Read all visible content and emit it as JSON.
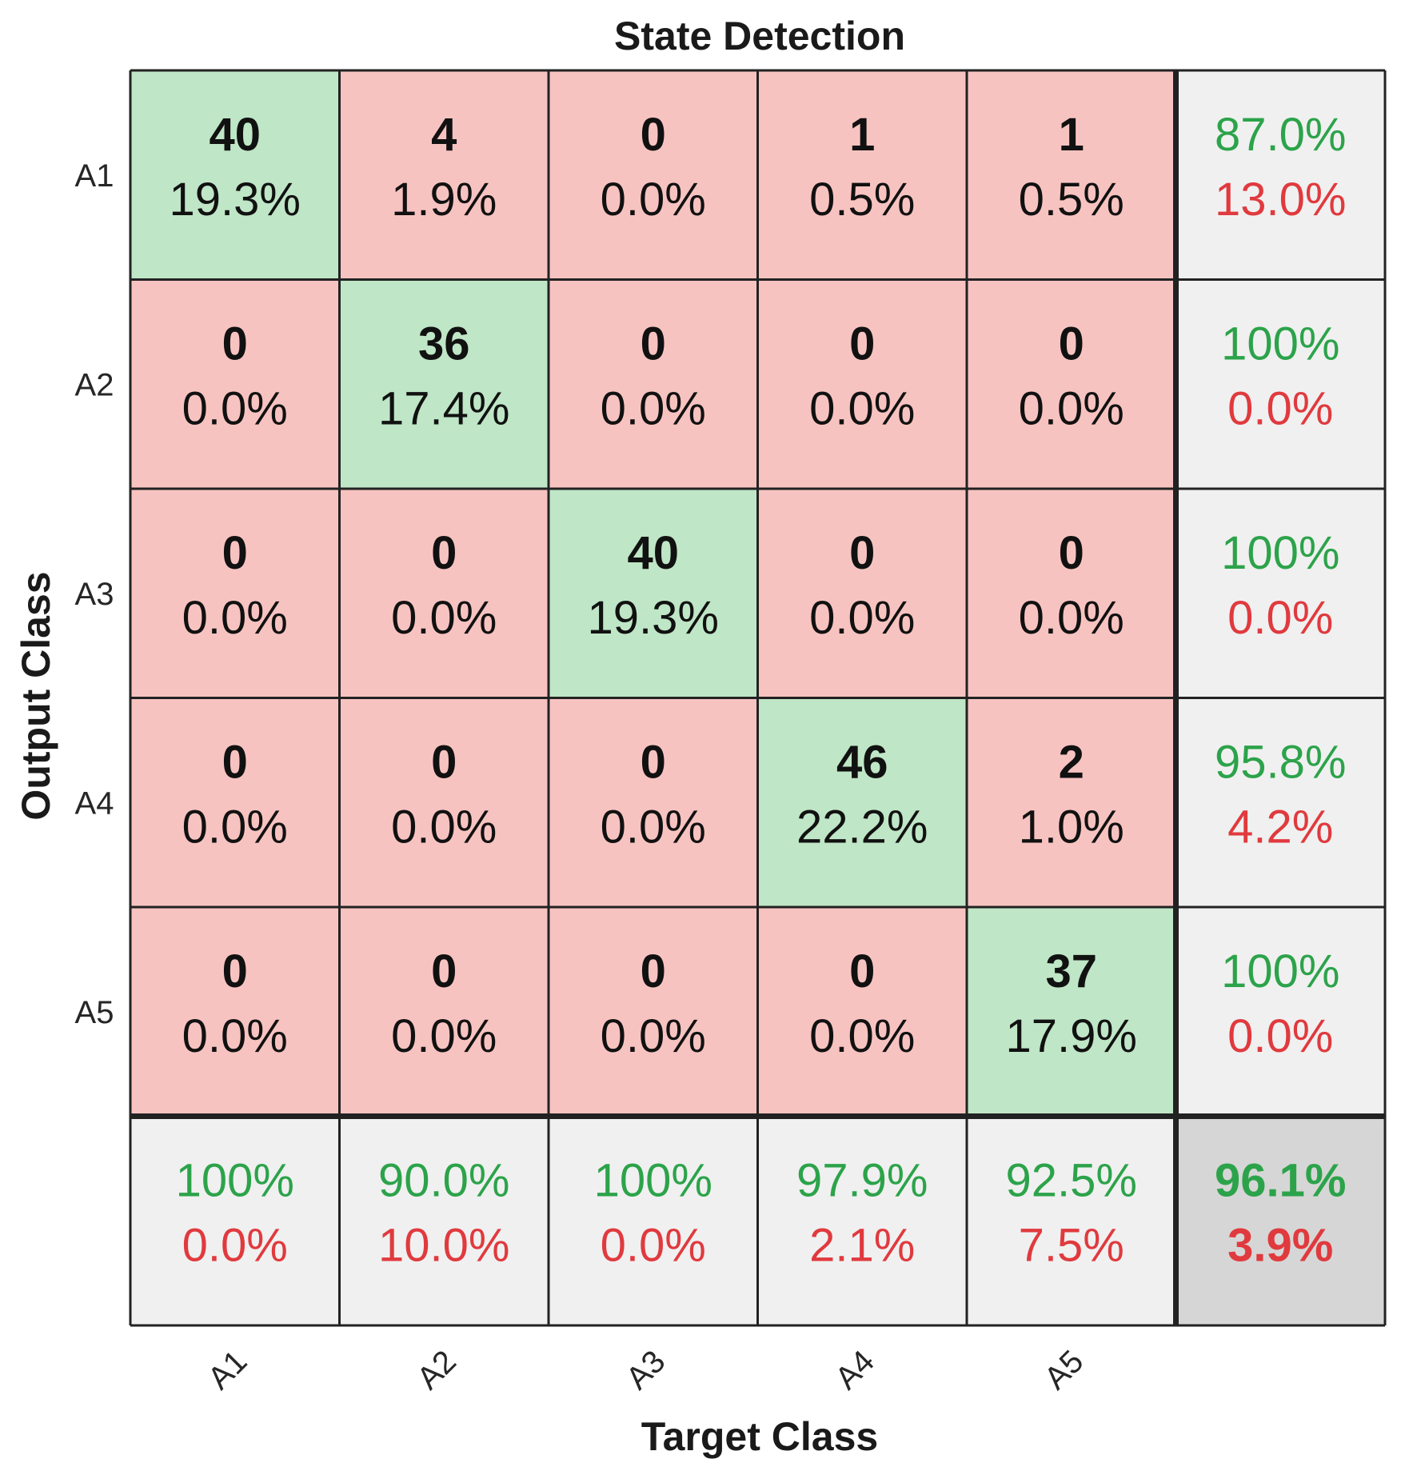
{
  "chart_data": {
    "type": "heatmap",
    "title": "State Detection",
    "xlabel": "Target Class",
    "ylabel": "Output Class",
    "classes": [
      "A1",
      "A2",
      "A3",
      "A4",
      "A5"
    ],
    "matrix": [
      [
        40,
        4,
        0,
        1,
        1
      ],
      [
        0,
        36,
        0,
        0,
        0
      ],
      [
        0,
        0,
        40,
        0,
        0
      ],
      [
        0,
        0,
        0,
        46,
        2
      ],
      [
        0,
        0,
        0,
        0,
        37
      ]
    ],
    "cell_percent": [
      [
        "19.3%",
        "1.9%",
        "0.0%",
        "0.5%",
        "0.5%"
      ],
      [
        "0.0%",
        "17.4%",
        "0.0%",
        "0.0%",
        "0.0%"
      ],
      [
        "0.0%",
        "0.0%",
        "19.3%",
        "0.0%",
        "0.0%"
      ],
      [
        "0.0%",
        "0.0%",
        "0.0%",
        "22.2%",
        "1.0%"
      ],
      [
        "0.0%",
        "0.0%",
        "0.0%",
        "0.0%",
        "17.9%"
      ]
    ],
    "row_summary": [
      {
        "correct": "87.0%",
        "error": "13.0%"
      },
      {
        "correct": "100%",
        "error": "0.0%"
      },
      {
        "correct": "100%",
        "error": "0.0%"
      },
      {
        "correct": "95.8%",
        "error": "4.2%"
      },
      {
        "correct": "100%",
        "error": "0.0%"
      }
    ],
    "col_summary": [
      {
        "correct": "100%",
        "error": "0.0%"
      },
      {
        "correct": "90.0%",
        "error": "10.0%"
      },
      {
        "correct": "100%",
        "error": "0.0%"
      },
      {
        "correct": "97.9%",
        "error": "2.1%"
      },
      {
        "correct": "92.5%",
        "error": "7.5%"
      }
    ],
    "overall": {
      "correct": "96.1%",
      "error": "3.9%"
    },
    "colors": {
      "diagonal": "#bfe6c6",
      "off_diagonal": "#f7c3c0",
      "summary": "#f0f0f0",
      "overall": "#d6d6d6",
      "correct_text": "#2ca34a",
      "error_text": "#e03a3e",
      "grid_line": "#222222"
    }
  }
}
